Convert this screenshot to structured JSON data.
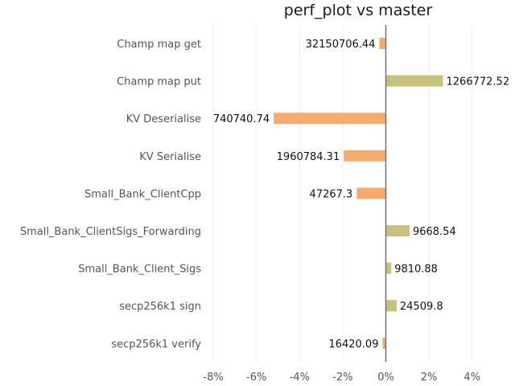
{
  "chart_data": {
    "type": "bar",
    "orientation": "horizontal",
    "title": "perf_plot vs master",
    "xlabel": "",
    "ylabel": "",
    "xlim": [
      -9,
      5
    ],
    "xticks": [
      -8,
      -6,
      -4,
      -2,
      0,
      2,
      4
    ],
    "tick_suffix": "%",
    "grid": true,
    "colors": {
      "positive": "#c7c17b",
      "negative": "#f5ab6e",
      "zero_line": "#777777",
      "grid": "#ececec"
    },
    "categories": [
      "Champ map get",
      "Champ map put",
      "KV Deserialise",
      "KV Serialise",
      "Small_Bank_ClientCpp",
      "Small_Bank_ClientSigs_Forwarding",
      "Small_Bank_Client_Sigs",
      "secp256k1 sign",
      "secp256k1 verify"
    ],
    "values": [
      -0.3,
      2.65,
      -5.2,
      -1.95,
      -1.35,
      1.1,
      0.25,
      0.5,
      -0.15
    ],
    "labels": [
      "32150706.44",
      "1266772.52",
      "740740.74",
      "1960784.31",
      "47267.3",
      "9668.54",
      "9810.88",
      "24509.8",
      "16420.09"
    ]
  }
}
